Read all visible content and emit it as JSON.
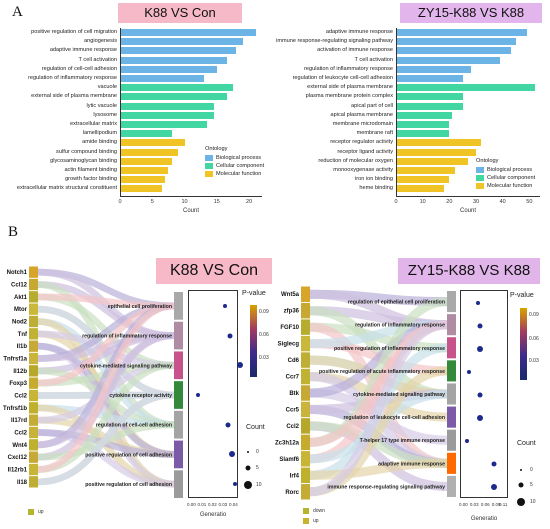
{
  "panelA": {
    "letter": "A",
    "left": {
      "title": "K88 VS Con",
      "xlabel": "Count",
      "ticks": [
        "0",
        "5",
        "10",
        "15",
        "20"
      ],
      "xmax": 22,
      "terms": [
        {
          "label": "positive regulation of cell migration",
          "value": 21,
          "cat": "bp"
        },
        {
          "label": "angiogenesis",
          "value": 19,
          "cat": "bp"
        },
        {
          "label": "adaptive immune response",
          "value": 18,
          "cat": "bp"
        },
        {
          "label": "T cell activation",
          "value": 16.5,
          "cat": "bp"
        },
        {
          "label": "regulation of cell-cell adhesion",
          "value": 15,
          "cat": "bp"
        },
        {
          "label": "regulation of inflammatory response",
          "value": 13,
          "cat": "bp"
        },
        {
          "label": "vacuole",
          "value": 17.5,
          "cat": "cc"
        },
        {
          "label": "external side of plasma membrane",
          "value": 16.5,
          "cat": "cc"
        },
        {
          "label": "lytic vacuole",
          "value": 14.5,
          "cat": "cc"
        },
        {
          "label": "lysosome",
          "value": 14.5,
          "cat": "cc"
        },
        {
          "label": "extracellular matrix",
          "value": 13.5,
          "cat": "cc"
        },
        {
          "label": "lamellipodium",
          "value": 8,
          "cat": "cc"
        },
        {
          "label": "amide binding",
          "value": 10,
          "cat": "mf"
        },
        {
          "label": "sulfur compound binding",
          "value": 9,
          "cat": "mf"
        },
        {
          "label": "glycosaminoglycan binding",
          "value": 8,
          "cat": "mf"
        },
        {
          "label": "actin filament binding",
          "value": 7.5,
          "cat": "mf"
        },
        {
          "label": "growth factor binding",
          "value": 7,
          "cat": "mf"
        },
        {
          "label": "extracellular matrix structural constituent",
          "value": 6.5,
          "cat": "mf"
        }
      ],
      "legend": {
        "title": "Ontology",
        "items": [
          "Biological process",
          "Cellular component",
          "Molecular function"
        ]
      }
    },
    "right": {
      "title": "ZY15-K88 VS K88",
      "xlabel": "Count",
      "ticks": [
        "0",
        "10",
        "20",
        "30",
        "40",
        "50"
      ],
      "xmax": 54,
      "terms": [
        {
          "label": "adaptive immune response",
          "value": 49,
          "cat": "bp"
        },
        {
          "label": "immune response-regulating signaling pathway",
          "value": 45,
          "cat": "bp"
        },
        {
          "label": "activation of immune response",
          "value": 43,
          "cat": "bp"
        },
        {
          "label": "T cell activation",
          "value": 39,
          "cat": "bp"
        },
        {
          "label": "regulation of inflammatory response",
          "value": 28,
          "cat": "bp"
        },
        {
          "label": "regulation of leukocyte cell-cell adhesion",
          "value": 25,
          "cat": "bp"
        },
        {
          "label": "external side of plasma membrane",
          "value": 52,
          "cat": "cc"
        },
        {
          "label": "plasma membrane protein complex",
          "value": 25,
          "cat": "cc"
        },
        {
          "label": "apical part of cell",
          "value": 25,
          "cat": "cc"
        },
        {
          "label": "apical plasma membrane",
          "value": 21,
          "cat": "cc"
        },
        {
          "label": "membrane microdomain",
          "value": 20,
          "cat": "cc"
        },
        {
          "label": "membrane raft",
          "value": 20,
          "cat": "cc"
        },
        {
          "label": "receptor regulator activity",
          "value": 32,
          "cat": "mf"
        },
        {
          "label": "receptor ligand activity",
          "value": 30,
          "cat": "mf"
        },
        {
          "label": "reduction of molecular oxygen",
          "value": 27,
          "cat": "mf"
        },
        {
          "label": "monooxygenase activity",
          "value": 22,
          "cat": "mf"
        },
        {
          "label": "iron ion binding",
          "value": 20,
          "cat": "mf"
        },
        {
          "label": "heme binding",
          "value": 18,
          "cat": "mf"
        }
      ],
      "legend": {
        "title": "Ontology",
        "items": [
          "Biological process",
          "Cellular component",
          "Molecular function"
        ]
      }
    },
    "colors": {
      "bp": "#6cb4e6",
      "cc": "#42d6a2",
      "mf": "#f0c424"
    }
  },
  "panelB": {
    "letter": "B",
    "left": {
      "title": "K88 VS Con",
      "genes": [
        "Notch1",
        "Ccl12",
        "Akt1",
        "Mtor",
        "Nod2",
        "Tnf",
        "Il1b",
        "Tnfrsf1a",
        "Il12b",
        "Foxp3",
        "Ccl2",
        "Tnfrsf1b",
        "Il17rd",
        "Ccl2",
        "Wnt4",
        "Cxcl12",
        "Il12rb1",
        "Il18"
      ],
      "terms": [
        {
          "label": "epithelial cell proliferation",
          "x": 0.03
        },
        {
          "label": "regulation of inflammatory response",
          "x": 0.035
        },
        {
          "label": "cytokine-mediated signaling pathway",
          "x": 0.045
        },
        {
          "label": "cytokine receptor activity",
          "x": 0.005
        },
        {
          "label": "regulation of cell-cell adhesion",
          "x": 0.033
        },
        {
          "label": "positive regulation of cell adhesion",
          "x": 0.037
        },
        {
          "label": "positive regulation of cell adhesion",
          "x": 0.04
        }
      ],
      "xticks": [
        "0.00",
        "0.01",
        "0.02",
        "0.03",
        "0.04"
      ],
      "xlabel": "Generatio",
      "pvalue_title": "P-value",
      "pvalue_ticks": [
        "0.09",
        "0.06",
        "0.03"
      ],
      "count_title": "Count",
      "count_items": [
        "0",
        "5",
        "10"
      ],
      "up_label": "up"
    },
    "right": {
      "title": "ZY15-K88 VS K88",
      "genes": [
        "Wnt5a",
        "zfp36",
        "FGF10",
        "Siglecg",
        "Cd6",
        "Ccr7",
        "Btk",
        "Ccr5",
        "Ccl2",
        "Zc3h12a",
        "Slamf6",
        "Irf4",
        "Rorc"
      ],
      "terms": [
        {
          "label": "regulation of epithelial cell proliferation",
          "x": 0.035
        },
        {
          "label": "regulation of inflammatory response",
          "x": 0.04
        },
        {
          "label": "positive regulation of inflammatory response",
          "x": 0.04
        },
        {
          "label": "positive regulation of acute inflammatory response",
          "x": 0.01
        },
        {
          "label": "cytokine-mediated signaling pathway",
          "x": 0.04
        },
        {
          "label": "regulation of leukocyte cell-cell adhesion",
          "x": 0.04
        },
        {
          "label": "T-helper 17 type immune response",
          "x": 0.005
        },
        {
          "label": "adaptive immune response",
          "x": 0.08
        },
        {
          "label": "immune response-regulating signaling pathway",
          "x": 0.08
        }
      ],
      "xticks": [
        "0.00",
        "0.03",
        "0.06",
        "0.09",
        "0.11"
      ],
      "xlabel": "Generatio",
      "pvalue_title": "P-value",
      "pvalue_ticks": [
        "0.09",
        "0.06",
        "0.03"
      ],
      "count_title": "Count",
      "count_items": [
        "0",
        "5",
        "10"
      ],
      "down_label": "down",
      "up_label": "up"
    }
  }
}
